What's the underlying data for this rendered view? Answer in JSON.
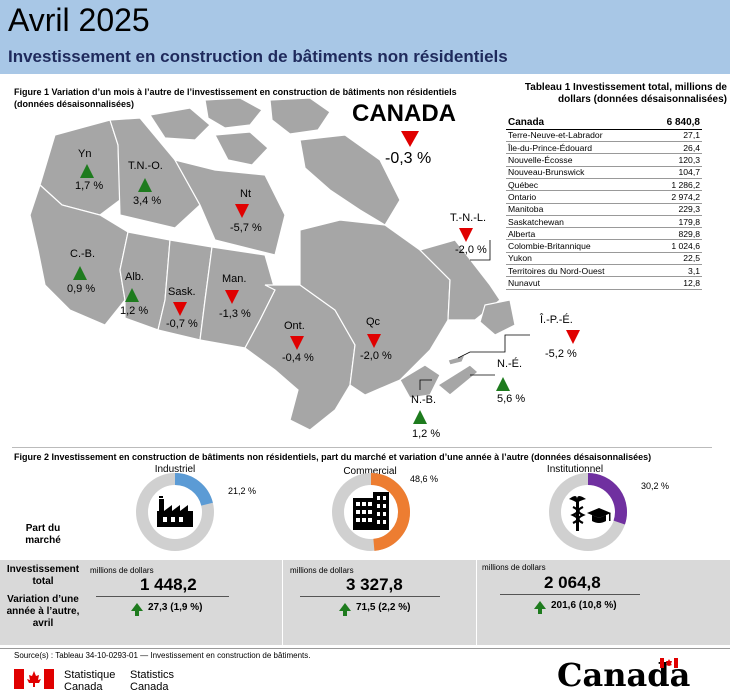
{
  "header": {
    "title": "Avril 2025",
    "subtitle": "Investissement en construction de bâtiments non résidentiels"
  },
  "figure1": {
    "title_line1": "Figure 1  Variation d’un mois à l’autre de l’investissement en construction de bâtiments non résidentiels",
    "title_line2": "(données désaisonnalisées)",
    "canada": {
      "label": "CANADA",
      "value": "-0,3 %",
      "direction": "down"
    },
    "regions": [
      {
        "abbr": "Yn",
        "value": "1,7 %",
        "direction": "up"
      },
      {
        "abbr": "T.N.-O.",
        "value": "3,4 %",
        "direction": "up"
      },
      {
        "abbr": "Nt",
        "value": "-5,7 %",
        "direction": "down"
      },
      {
        "abbr": "C.-B.",
        "value": "0,9 %",
        "direction": "up"
      },
      {
        "abbr": "Alb.",
        "value": "1,2 %",
        "direction": "up"
      },
      {
        "abbr": "Sask.",
        "value": "-0,7 %",
        "direction": "down"
      },
      {
        "abbr": "Man.",
        "value": "-1,3 %",
        "direction": "down"
      },
      {
        "abbr": "Ont.",
        "value": "-0,4 %",
        "direction": "down"
      },
      {
        "abbr": "Qc",
        "value": "-2,0 %",
        "direction": "down"
      },
      {
        "abbr": "T.-N.-L.",
        "value": "-2,0 %",
        "direction": "down"
      },
      {
        "abbr": "Î.-P.-É.",
        "value": "-5,2 %",
        "direction": "down"
      },
      {
        "abbr": "N.-É.",
        "value": "5,6 %",
        "direction": "up"
      },
      {
        "abbr": "N.-B.",
        "value": "1,2 %",
        "direction": "up"
      }
    ],
    "colors": {
      "up": "#1e7b1e",
      "down": "#e00000",
      "land": "#a6a6a6"
    }
  },
  "table1": {
    "title_line1": "Tableau 1 Investissement total, millions de",
    "title_line2": "dollars (données désaisonnalisées)",
    "total": {
      "name": "Canada",
      "value": "6 840,8"
    },
    "rows": [
      {
        "name": "Terre-Neuve-et-Labrador",
        "value": "27,1"
      },
      {
        "name": "Île-du-Prince-Édouard",
        "value": "26,4"
      },
      {
        "name": "Nouvelle-Écosse",
        "value": "120,3"
      },
      {
        "name": "Nouveau-Brunswick",
        "value": "104,7"
      },
      {
        "name": "Québec",
        "value": "1 286,2"
      },
      {
        "name": "Ontario",
        "value": "2 974,2"
      },
      {
        "name": "Manitoba",
        "value": "229,3"
      },
      {
        "name": "Saskatchewan",
        "value": "179,8"
      },
      {
        "name": "Alberta",
        "value": "829,8"
      },
      {
        "name": "Colombie-Britannique",
        "value": "1 024,6"
      },
      {
        "name": "Yukon",
        "value": "22,5"
      },
      {
        "name": "Territoires du Nord-Ouest",
        "value": "3,1"
      },
      {
        "name": "Nunavut",
        "value": "12,8"
      }
    ]
  },
  "figure2": {
    "title": "Figure 2  Investissement en construction de bâtiments non résidentiels, part du marché et variation d’une année à l’autre (données désaisonnalisées)",
    "row_labels": {
      "share": "Part du marché",
      "total": "Investissement total",
      "change": "Variation d’une année à l’autre, avril"
    },
    "segments": [
      {
        "name": "Industriel",
        "share": 21.2,
        "share_label": "21,2 %",
        "unit": "millions de dollars",
        "total": "1 448,2",
        "change": "27,3 (1,9 %)",
        "direction": "up",
        "color": "#5b9bd5",
        "icon": "factory-icon"
      },
      {
        "name": "Commercial",
        "share": 48.6,
        "share_label": "48,6 %",
        "unit": "millions de dollars",
        "total": "3 327,8",
        "change": "71,5 (2,2 %)",
        "direction": "up",
        "color": "#ed7d31",
        "icon": "office-building-icon"
      },
      {
        "name": "Institutionnel",
        "share": 30.2,
        "share_label": "30,2 %",
        "unit": "millions de dollars",
        "total": "2 064,8",
        "change": "201,6 (10,8 %)",
        "direction": "up",
        "color": "#7030a0",
        "icon": "caduceus-graduation-cap-icon"
      }
    ],
    "ring_track_color": "#d0d0d0"
  },
  "footer": {
    "source": "Source(s) : Tableau 34-10-0293-01 — Investissement en construction de bâtiments.",
    "agency_fr_1": "Statistique",
    "agency_fr_2": "Canada",
    "agency_en_1": "Statistics",
    "agency_en_2": "Canada",
    "wordmark": "Canada"
  }
}
